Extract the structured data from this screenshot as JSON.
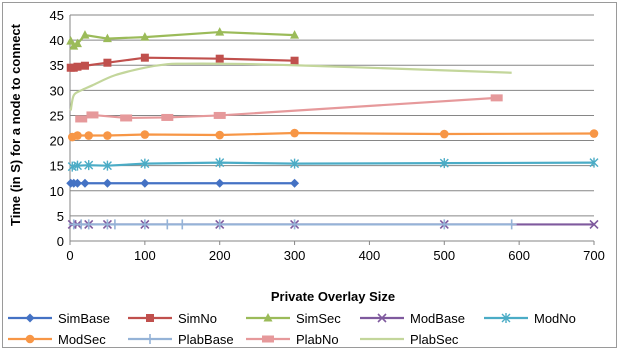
{
  "chart_data": {
    "type": "line",
    "xlabel": "Private Overlay Size",
    "ylabel": "Time (in S) for a node to connect",
    "xlim": [
      0,
      700
    ],
    "ylim": [
      0,
      45
    ],
    "x_ticks": [
      0,
      100,
      200,
      300,
      400,
      500,
      600,
      700
    ],
    "y_ticks": [
      0,
      5,
      10,
      15,
      20,
      25,
      30,
      35,
      40,
      45
    ],
    "grid": "horizontal",
    "legend_position": "bottom",
    "series": [
      {
        "name": "SimBase",
        "color": "#4472c4",
        "marker": "diamond",
        "smooth": false,
        "points": [
          [
            1,
            11.5
          ],
          [
            5,
            11.5
          ],
          [
            10,
            11.5
          ],
          [
            20,
            11.5
          ],
          [
            50,
            11.5
          ],
          [
            100,
            11.5
          ],
          [
            200,
            11.5
          ],
          [
            300,
            11.5
          ]
        ]
      },
      {
        "name": "SimNo",
        "color": "#c0504d",
        "marker": "square",
        "smooth": false,
        "points": [
          [
            1,
            34.5
          ],
          [
            5,
            34.5
          ],
          [
            10,
            34.7
          ],
          [
            20,
            34.9
          ],
          [
            50,
            35.5
          ],
          [
            100,
            36.5
          ],
          [
            200,
            36.3
          ],
          [
            300,
            35.9
          ]
        ]
      },
      {
        "name": "SimSec",
        "color": "#9bbb59",
        "marker": "triangle",
        "smooth": false,
        "points": [
          [
            1,
            39.8
          ],
          [
            5,
            38.8
          ],
          [
            10,
            39.3
          ],
          [
            20,
            41.0
          ],
          [
            50,
            40.3
          ],
          [
            100,
            40.6
          ],
          [
            200,
            41.6
          ],
          [
            300,
            41.0
          ]
        ]
      },
      {
        "name": "ModBase",
        "color": "#7f5a9e",
        "marker": "x",
        "smooth": false,
        "points": [
          [
            3,
            3.3
          ],
          [
            10,
            3.3
          ],
          [
            25,
            3.3
          ],
          [
            50,
            3.3
          ],
          [
            100,
            3.3
          ],
          [
            200,
            3.3
          ],
          [
            300,
            3.3
          ],
          [
            500,
            3.3
          ],
          [
            700,
            3.3
          ]
        ]
      },
      {
        "name": "ModNo",
        "color": "#4bacc6",
        "marker": "star",
        "smooth": false,
        "points": [
          [
            3,
            14.8
          ],
          [
            10,
            15.0
          ],
          [
            25,
            15.1
          ],
          [
            50,
            15.0
          ],
          [
            100,
            15.4
          ],
          [
            200,
            15.6
          ],
          [
            300,
            15.4
          ],
          [
            500,
            15.5
          ],
          [
            700,
            15.6
          ]
        ]
      },
      {
        "name": "ModSec",
        "color": "#f79646",
        "marker": "circle",
        "smooth": false,
        "points": [
          [
            3,
            20.7
          ],
          [
            10,
            21.0
          ],
          [
            25,
            21.0
          ],
          [
            50,
            21.0
          ],
          [
            100,
            21.2
          ],
          [
            200,
            21.1
          ],
          [
            300,
            21.5
          ],
          [
            500,
            21.3
          ],
          [
            700,
            21.4
          ]
        ]
      },
      {
        "name": "PlabBase",
        "color": "#95b3d7",
        "marker": "plus",
        "smooth": false,
        "points": [
          [
            5,
            3.3
          ],
          [
            15,
            3.3
          ],
          [
            25,
            3.3
          ],
          [
            50,
            3.3
          ],
          [
            60,
            3.3
          ],
          [
            100,
            3.3
          ],
          [
            130,
            3.3
          ],
          [
            150,
            3.3
          ],
          [
            200,
            3.3
          ],
          [
            300,
            3.3
          ],
          [
            500,
            3.3
          ],
          [
            590,
            3.3
          ]
        ]
      },
      {
        "name": "PlabNo",
        "color": "#e6999b",
        "marker": "dash",
        "smooth": false,
        "points": [
          [
            15,
            24.3
          ],
          [
            30,
            25.1
          ],
          [
            75,
            24.5
          ],
          [
            130,
            24.6
          ],
          [
            200,
            25.0
          ],
          [
            570,
            28.5
          ]
        ]
      },
      {
        "name": "PlabSec",
        "color": "#c3d69b",
        "marker": "none",
        "smooth": true,
        "points": [
          [
            1,
            26
          ],
          [
            5,
            29
          ],
          [
            15,
            30
          ],
          [
            30,
            31
          ],
          [
            60,
            33
          ],
          [
            100,
            34.5
          ],
          [
            130,
            35.2
          ],
          [
            150,
            35.3
          ],
          [
            200,
            35.3
          ],
          [
            300,
            35.0
          ],
          [
            590,
            33.5
          ]
        ]
      }
    ]
  }
}
